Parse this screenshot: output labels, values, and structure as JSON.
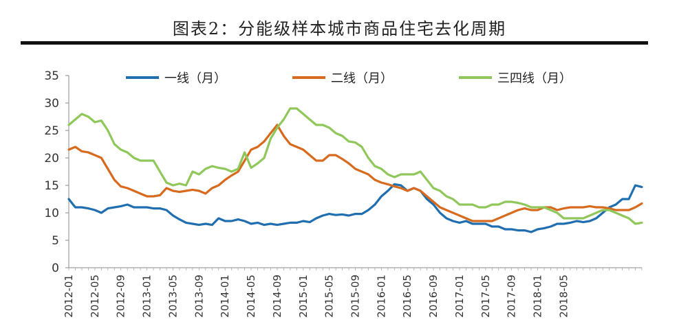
{
  "chart_data": {
    "type": "line",
    "title": "图表2：分能级样本城市商品住宅去化周期",
    "xlabel": "",
    "ylabel": "",
    "ylim": [
      0,
      35
    ],
    "yticks": [
      0,
      5,
      10,
      15,
      20,
      25,
      30,
      35
    ],
    "xtick_labels": [
      "2012-01",
      "2012-05",
      "2012-09",
      "2013-01",
      "2013-05",
      "2013-09",
      "2014-01",
      "2014-05",
      "2014-09",
      "2015-01",
      "2015-05",
      "2015-09",
      "2016-01",
      "2016-05",
      "2016-09",
      "2017-01",
      "2017-05",
      "2017-09",
      "2018-01",
      "2018-05"
    ],
    "x_start": "2012-01",
    "x_step": "month",
    "legend_position": "top",
    "series": [
      {
        "name": "一线（月）",
        "color": "#1f6fb0",
        "values": [
          12.5,
          11.0,
          11.0,
          10.8,
          10.5,
          10.0,
          10.8,
          11.0,
          11.2,
          11.5,
          11.0,
          11.0,
          11.0,
          10.8,
          10.8,
          10.5,
          9.5,
          8.8,
          8.2,
          8.0,
          7.8,
          8.0,
          7.8,
          9.0,
          8.5,
          8.5,
          8.8,
          8.5,
          8.0,
          8.2,
          7.8,
          8.0,
          7.8,
          8.0,
          8.2,
          8.2,
          8.5,
          8.3,
          9.0,
          9.5,
          9.8,
          9.6,
          9.7,
          9.5,
          9.8,
          9.8,
          10.5,
          11.5,
          13.0,
          14.0,
          15.2,
          15.0,
          14.0,
          14.5,
          14.0,
          12.5,
          11.5,
          10.0,
          9.0,
          8.5,
          8.2,
          8.5,
          8.0,
          8.0,
          8.0,
          7.5,
          7.5,
          7.0,
          7.0,
          6.8,
          6.8,
          6.5,
          7.0,
          7.2,
          7.5,
          8.0,
          8.0,
          8.2,
          8.5,
          8.3,
          8.5,
          9.0,
          10.0,
          11.0,
          11.5,
          12.5,
          12.5,
          15.0,
          14.7
        ]
      },
      {
        "name": "二线（月）",
        "color": "#d86a1e",
        "values": [
          21.5,
          22.0,
          21.2,
          21.0,
          20.5,
          20.0,
          18.0,
          16.0,
          14.8,
          14.5,
          14.0,
          13.5,
          13.0,
          13.0,
          13.2,
          14.5,
          14.0,
          13.8,
          14.0,
          14.2,
          14.0,
          13.5,
          14.5,
          15.0,
          16.0,
          16.8,
          17.5,
          19.5,
          21.5,
          22.0,
          23.0,
          24.5,
          26.0,
          24.0,
          22.5,
          22.0,
          21.5,
          20.5,
          19.5,
          19.5,
          20.5,
          20.5,
          19.8,
          19.0,
          18.0,
          17.5,
          17.0,
          16.0,
          15.5,
          15.2,
          14.8,
          14.5,
          14.0,
          14.5,
          14.0,
          13.0,
          12.0,
          11.0,
          10.5,
          10.0,
          9.5,
          9.0,
          8.5,
          8.5,
          8.5,
          8.5,
          9.0,
          9.5,
          10.0,
          10.5,
          10.8,
          10.5,
          10.5,
          11.0,
          11.0,
          10.5,
          10.8,
          11.0,
          11.0,
          11.0,
          11.2,
          11.0,
          11.0,
          10.8,
          10.5,
          10.5,
          10.5,
          11.0,
          11.7
        ]
      },
      {
        "name": "三四线（月）",
        "color": "#8fc75a",
        "values": [
          26.0,
          27.0,
          28.0,
          27.5,
          26.5,
          26.8,
          25.0,
          22.5,
          21.5,
          21.0,
          20.0,
          19.5,
          19.5,
          19.5,
          17.5,
          15.5,
          15.0,
          15.3,
          15.0,
          17.5,
          17.0,
          18.0,
          18.5,
          18.2,
          18.0,
          17.5,
          18.0,
          21.0,
          18.2,
          19.0,
          20.0,
          23.5,
          25.5,
          27.0,
          29.0,
          29.0,
          28.0,
          27.0,
          26.0,
          26.0,
          25.5,
          24.5,
          24.0,
          23.0,
          22.8,
          22.0,
          20.0,
          18.5,
          18.0,
          17.0,
          16.5,
          17.0,
          17.0,
          17.0,
          17.5,
          16.0,
          14.5,
          14.0,
          13.0,
          12.5,
          11.5,
          11.5,
          11.5,
          11.0,
          11.0,
          11.5,
          11.5,
          12.0,
          12.0,
          11.8,
          11.5,
          11.0,
          11.0,
          11.0,
          10.5,
          10.0,
          9.0,
          9.0,
          9.0,
          9.0,
          9.5,
          10.0,
          10.5,
          10.5,
          10.0,
          9.5,
          9.0,
          8.0,
          8.2
        ]
      }
    ]
  }
}
